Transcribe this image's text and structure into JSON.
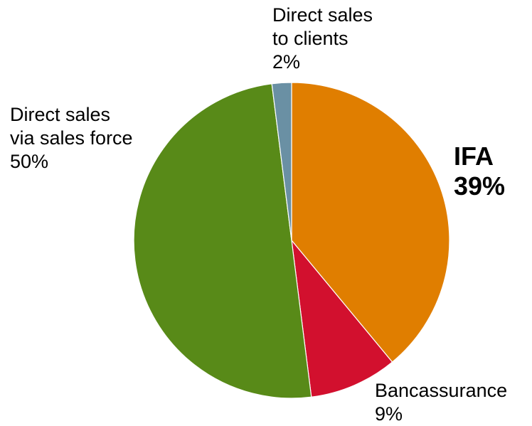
{
  "chart_data": {
    "type": "pie",
    "title": "",
    "start_angle_deg": 0,
    "direction": "clockwise",
    "slices": [
      {
        "key": "ifa",
        "label_lines": [
          "IFA"
        ],
        "value": 39,
        "value_label": "39%",
        "color": "#E07E00",
        "emphasis": true
      },
      {
        "key": "bancassurance",
        "label_lines": [
          "Bancassurance"
        ],
        "value": 9,
        "value_label": "9%",
        "color": "#D2102E",
        "emphasis": false
      },
      {
        "key": "direct-sales-force",
        "label_lines": [
          "Direct sales",
          "via sales force"
        ],
        "value": 50,
        "value_label": "50%",
        "color": "#588A18",
        "emphasis": false
      },
      {
        "key": "direct-sales-clients",
        "label_lines": [
          "Direct sales",
          "to clients"
        ],
        "value": 2,
        "value_label": "2%",
        "color": "#6A90A4",
        "emphasis": false
      }
    ]
  }
}
